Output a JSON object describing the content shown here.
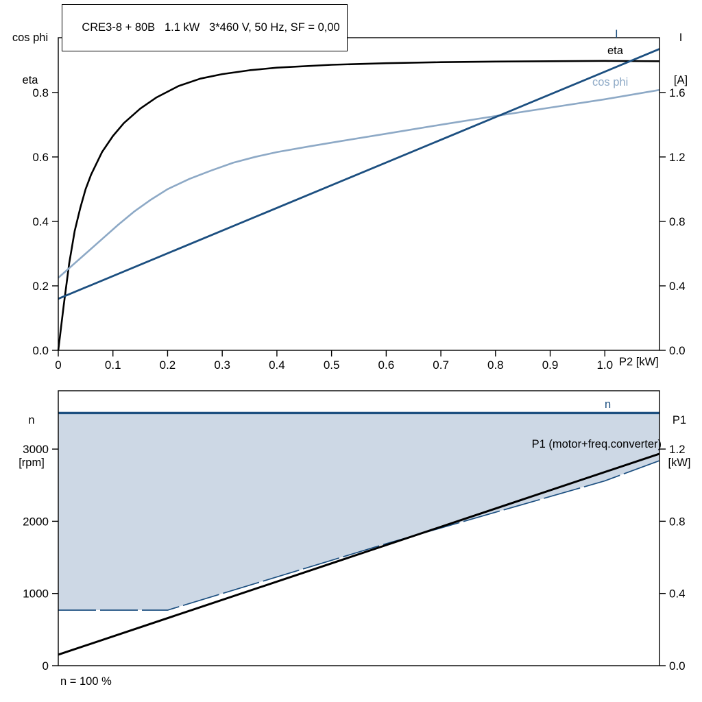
{
  "colors": {
    "black": "#000000",
    "dark_blue": "#1c4f80",
    "light_blue": "#8da9c6",
    "fill": "#cdd8e5",
    "frame": "#000000",
    "bg": "#ffffff"
  },
  "chart_data": [
    {
      "type": "line",
      "title": "CRE3-8 + 80B   1.1 kW   3*460 V, 50 Hz, SF = 0,00",
      "x_label": "P2 [kW]",
      "x_range": [
        0,
        1.1
      ],
      "x_ticks": [
        {
          "v": 0,
          "label": "0"
        },
        {
          "v": 0.1,
          "label": "0.1"
        },
        {
          "v": 0.2,
          "label": "0.2"
        },
        {
          "v": 0.3,
          "label": "0.3"
        },
        {
          "v": 0.4,
          "label": "0.4"
        },
        {
          "v": 0.5,
          "label": "0.5"
        },
        {
          "v": 0.6,
          "label": "0.6"
        },
        {
          "v": 0.7,
          "label": "0.7"
        },
        {
          "v": 0.8,
          "label": "0.8"
        },
        {
          "v": 0.9,
          "label": "0.9"
        },
        {
          "v": 1.0,
          "label": "1.0"
        }
      ],
      "left_axis": {
        "label_lines": [
          "cos phi",
          "eta"
        ],
        "range": [
          0,
          0.97
        ],
        "ticks": [
          {
            "v": 0.0,
            "label": "0.0"
          },
          {
            "v": 0.2,
            "label": "0.2"
          },
          {
            "v": 0.4,
            "label": "0.4"
          },
          {
            "v": 0.6,
            "label": "0.6"
          },
          {
            "v": 0.8,
            "label": "0.8"
          }
        ]
      },
      "right_axis": {
        "label_lines": [
          "I",
          "[A]"
        ],
        "range": [
          0,
          1.94
        ],
        "ticks": [
          {
            "v": 0.0,
            "label": "0.0"
          },
          {
            "v": 0.4,
            "label": "0.4"
          },
          {
            "v": 0.8,
            "label": "0.8"
          },
          {
            "v": 1.2,
            "label": "1.2"
          },
          {
            "v": 1.6,
            "label": "1.6"
          }
        ]
      },
      "series": [
        {
          "name": "eta",
          "label": "eta",
          "color_key": "black",
          "axis": "left",
          "width": 2.6,
          "points": [
            [
              0,
              0
            ],
            [
              0.005,
              0.07
            ],
            [
              0.01,
              0.14
            ],
            [
              0.02,
              0.27
            ],
            [
              0.03,
              0.37
            ],
            [
              0.04,
              0.44
            ],
            [
              0.05,
              0.5
            ],
            [
              0.06,
              0.545
            ],
            [
              0.08,
              0.615
            ],
            [
              0.1,
              0.665
            ],
            [
              0.12,
              0.705
            ],
            [
              0.15,
              0.75
            ],
            [
              0.18,
              0.785
            ],
            [
              0.22,
              0.82
            ],
            [
              0.26,
              0.843
            ],
            [
              0.3,
              0.857
            ],
            [
              0.35,
              0.869
            ],
            [
              0.4,
              0.877
            ],
            [
              0.5,
              0.886
            ],
            [
              0.6,
              0.891
            ],
            [
              0.7,
              0.894
            ],
            [
              0.8,
              0.896
            ],
            [
              0.9,
              0.897
            ],
            [
              1.0,
              0.898
            ],
            [
              1.1,
              0.897
            ]
          ]
        },
        {
          "name": "cos_phi",
          "label": "cos phi",
          "color_key": "light_blue",
          "axis": "left",
          "width": 2.6,
          "points": [
            [
              0,
              0.225
            ],
            [
              0.02,
              0.255
            ],
            [
              0.05,
              0.3
            ],
            [
              0.08,
              0.345
            ],
            [
              0.11,
              0.39
            ],
            [
              0.14,
              0.432
            ],
            [
              0.17,
              0.468
            ],
            [
              0.2,
              0.5
            ],
            [
              0.24,
              0.532
            ],
            [
              0.28,
              0.558
            ],
            [
              0.32,
              0.582
            ],
            [
              0.36,
              0.6
            ],
            [
              0.4,
              0.615
            ],
            [
              0.46,
              0.633
            ],
            [
              0.52,
              0.65
            ],
            [
              0.6,
              0.672
            ],
            [
              0.7,
              0.7
            ],
            [
              0.8,
              0.727
            ],
            [
              0.9,
              0.753
            ],
            [
              1.0,
              0.779
            ],
            [
              1.1,
              0.808
            ]
          ]
        },
        {
          "name": "I",
          "label": "I",
          "color_key": "dark_blue",
          "axis": "right",
          "width": 2.8,
          "points": [
            [
              0,
              0.32
            ],
            [
              1.1,
              1.87
            ]
          ]
        }
      ]
    },
    {
      "type": "line",
      "title": "",
      "x_label": "",
      "x_range": [
        0,
        1.1
      ],
      "x_ticks": [],
      "note": "n = 100 %",
      "left_axis": {
        "label_lines": [
          "n",
          "[rpm]"
        ],
        "range": [
          0,
          3808
        ],
        "ticks": [
          {
            "v": 0,
            "label": "0"
          },
          {
            "v": 1000,
            "label": "1000"
          },
          {
            "v": 2000,
            "label": "2000"
          },
          {
            "v": 3000,
            "label": "3000"
          }
        ]
      },
      "right_axis": {
        "label_lines": [
          "P1",
          "[kW]"
        ],
        "range": [
          0,
          1.523
        ],
        "ticks": [
          {
            "v": 0.0,
            "label": "0.0"
          },
          {
            "v": 0.4,
            "label": "0.4"
          },
          {
            "v": 0.8,
            "label": "0.8"
          },
          {
            "v": 1.2,
            "label": "1.2"
          }
        ]
      },
      "fill": {
        "lower_series": "n_min",
        "upper_series": "n",
        "color_key": "fill"
      },
      "series": [
        {
          "name": "n_min",
          "label": "",
          "color_key": "dark_blue",
          "axis": "left",
          "width": 1.7,
          "dash": "55 6",
          "points": [
            [
              0,
              769
            ],
            [
              0.2,
              769
            ],
            [
              0.6,
              1690
            ],
            [
              1.0,
              2560
            ],
            [
              1.1,
              2840
            ]
          ]
        },
        {
          "name": "n",
          "label": "n",
          "color_key": "dark_blue",
          "axis": "left",
          "width": 3.4,
          "points": [
            [
              0,
              3500
            ],
            [
              1.1,
              3500
            ]
          ]
        },
        {
          "name": "P1",
          "label": "P1 (motor+freq.converter)",
          "color_key": "black",
          "axis": "right",
          "width": 3.0,
          "points": [
            [
              0,
              0.061
            ],
            [
              1.1,
              1.174
            ]
          ]
        }
      ]
    }
  ]
}
